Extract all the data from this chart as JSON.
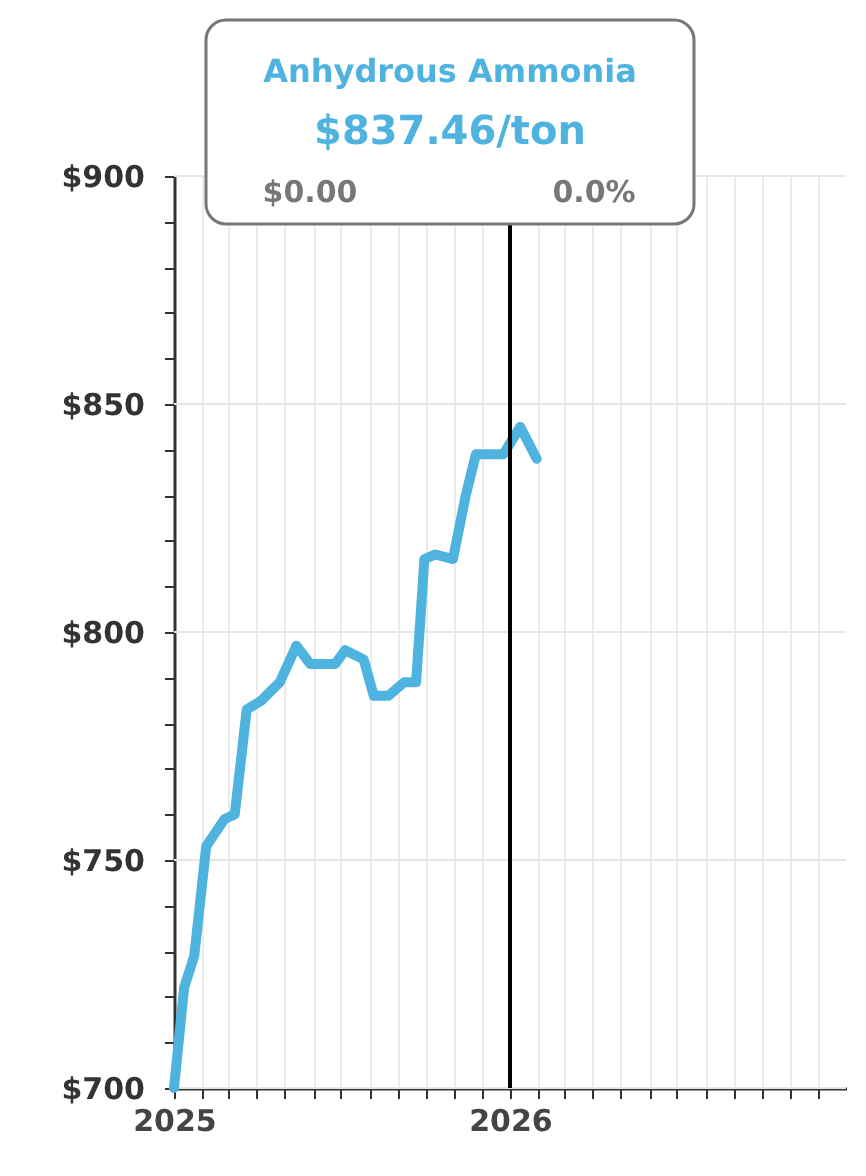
{
  "chart_data": {
    "type": "line",
    "annotations": [
      "Anhydrous Ammonia",
      "$837.46/ton",
      "$0.00",
      "0.0%"
    ],
    "x": [
      "2025-01-01",
      "2025-01-12",
      "2025-01-23",
      "2025-02-05",
      "2025-02-25",
      "2025-03-08",
      "2025-03-21",
      "2025-04-06",
      "2025-04-26",
      "2025-05-14",
      "2025-05-29",
      "2025-06-25",
      "2025-07-06",
      "2025-07-26",
      "2025-08-06",
      "2025-08-22",
      "2025-09-08",
      "2025-09-21",
      "2025-09-30",
      "2025-10-12",
      "2025-10-31",
      "2025-11-14",
      "2025-11-25",
      "2025-12-25",
      "2026-01-12",
      "2026-01-30"
    ],
    "series": [
      {
        "color": "#4fb3e0",
        "values": [
          700,
          722,
          729,
          753,
          759,
          760,
          783,
          785,
          789,
          797,
          793,
          793,
          796,
          794,
          786,
          786,
          789,
          789,
          816,
          817,
          816,
          830,
          839,
          839,
          845,
          838
        ]
      }
    ],
    "xlim": [
      "2025-01-01",
      "2027-01-01"
    ],
    "xticks": [
      {
        "value": "2025-01-01",
        "label": "2025"
      },
      {
        "value": "2025-02-01",
        "label": null
      },
      {
        "value": "2025-03-01",
        "label": null
      },
      {
        "value": "2025-04-01",
        "label": null
      },
      {
        "value": "2025-05-01",
        "label": null
      },
      {
        "value": "2025-06-01",
        "label": null
      },
      {
        "value": "2025-07-01",
        "label": null
      },
      {
        "value": "2025-08-01",
        "label": null
      },
      {
        "value": "2025-09-01",
        "label": null
      },
      {
        "value": "2025-10-01",
        "label": null
      },
      {
        "value": "2025-11-01",
        "label": null
      },
      {
        "value": "2025-12-01",
        "label": null
      },
      {
        "value": "2026-01-01",
        "label": "2026"
      },
      {
        "value": "2026-02-01",
        "label": null
      },
      {
        "value": "2026-03-01",
        "label": null
      },
      {
        "value": "2026-04-01",
        "label": null
      },
      {
        "value": "2026-05-01",
        "label": null
      },
      {
        "value": "2026-06-01",
        "label": null
      },
      {
        "value": "2026-07-01",
        "label": null
      },
      {
        "value": "2026-08-01",
        "label": null
      },
      {
        "value": "2026-09-01",
        "label": null
      },
      {
        "value": "2026-10-01",
        "label": null
      },
      {
        "value": "2026-11-01",
        "label": null
      },
      {
        "value": "2026-12-01",
        "label": null
      }
    ],
    "ylim": [
      700,
      900
    ],
    "yticks": [
      {
        "value": 700,
        "label": "$700"
      },
      {
        "value": 710,
        "label": null
      },
      {
        "value": 720,
        "label": null
      },
      {
        "value": 730,
        "label": null
      },
      {
        "value": 740,
        "label": null
      },
      {
        "value": 750,
        "label": "$750"
      },
      {
        "value": 760,
        "label": null
      },
      {
        "value": 770,
        "label": null
      },
      {
        "value": 780,
        "label": null
      },
      {
        "value": 790,
        "label": null
      },
      {
        "value": 800,
        "label": "$800"
      },
      {
        "value": 810,
        "label": null
      },
      {
        "value": 820,
        "label": null
      },
      {
        "value": 830,
        "label": null
      },
      {
        "value": 840,
        "label": null
      },
      {
        "value": 850,
        "label": "$850"
      },
      {
        "value": 860,
        "label": null
      },
      {
        "value": 870,
        "label": null
      },
      {
        "value": 880,
        "label": null
      },
      {
        "value": 890,
        "label": null
      },
      {
        "value": 900,
        "label": "$900"
      }
    ],
    "ref_lines": [
      {
        "axis": "x",
        "value": "2026-01-01",
        "color": "#000000"
      }
    ],
    "grid": true,
    "line_style": "solid",
    "marker": "none"
  }
}
